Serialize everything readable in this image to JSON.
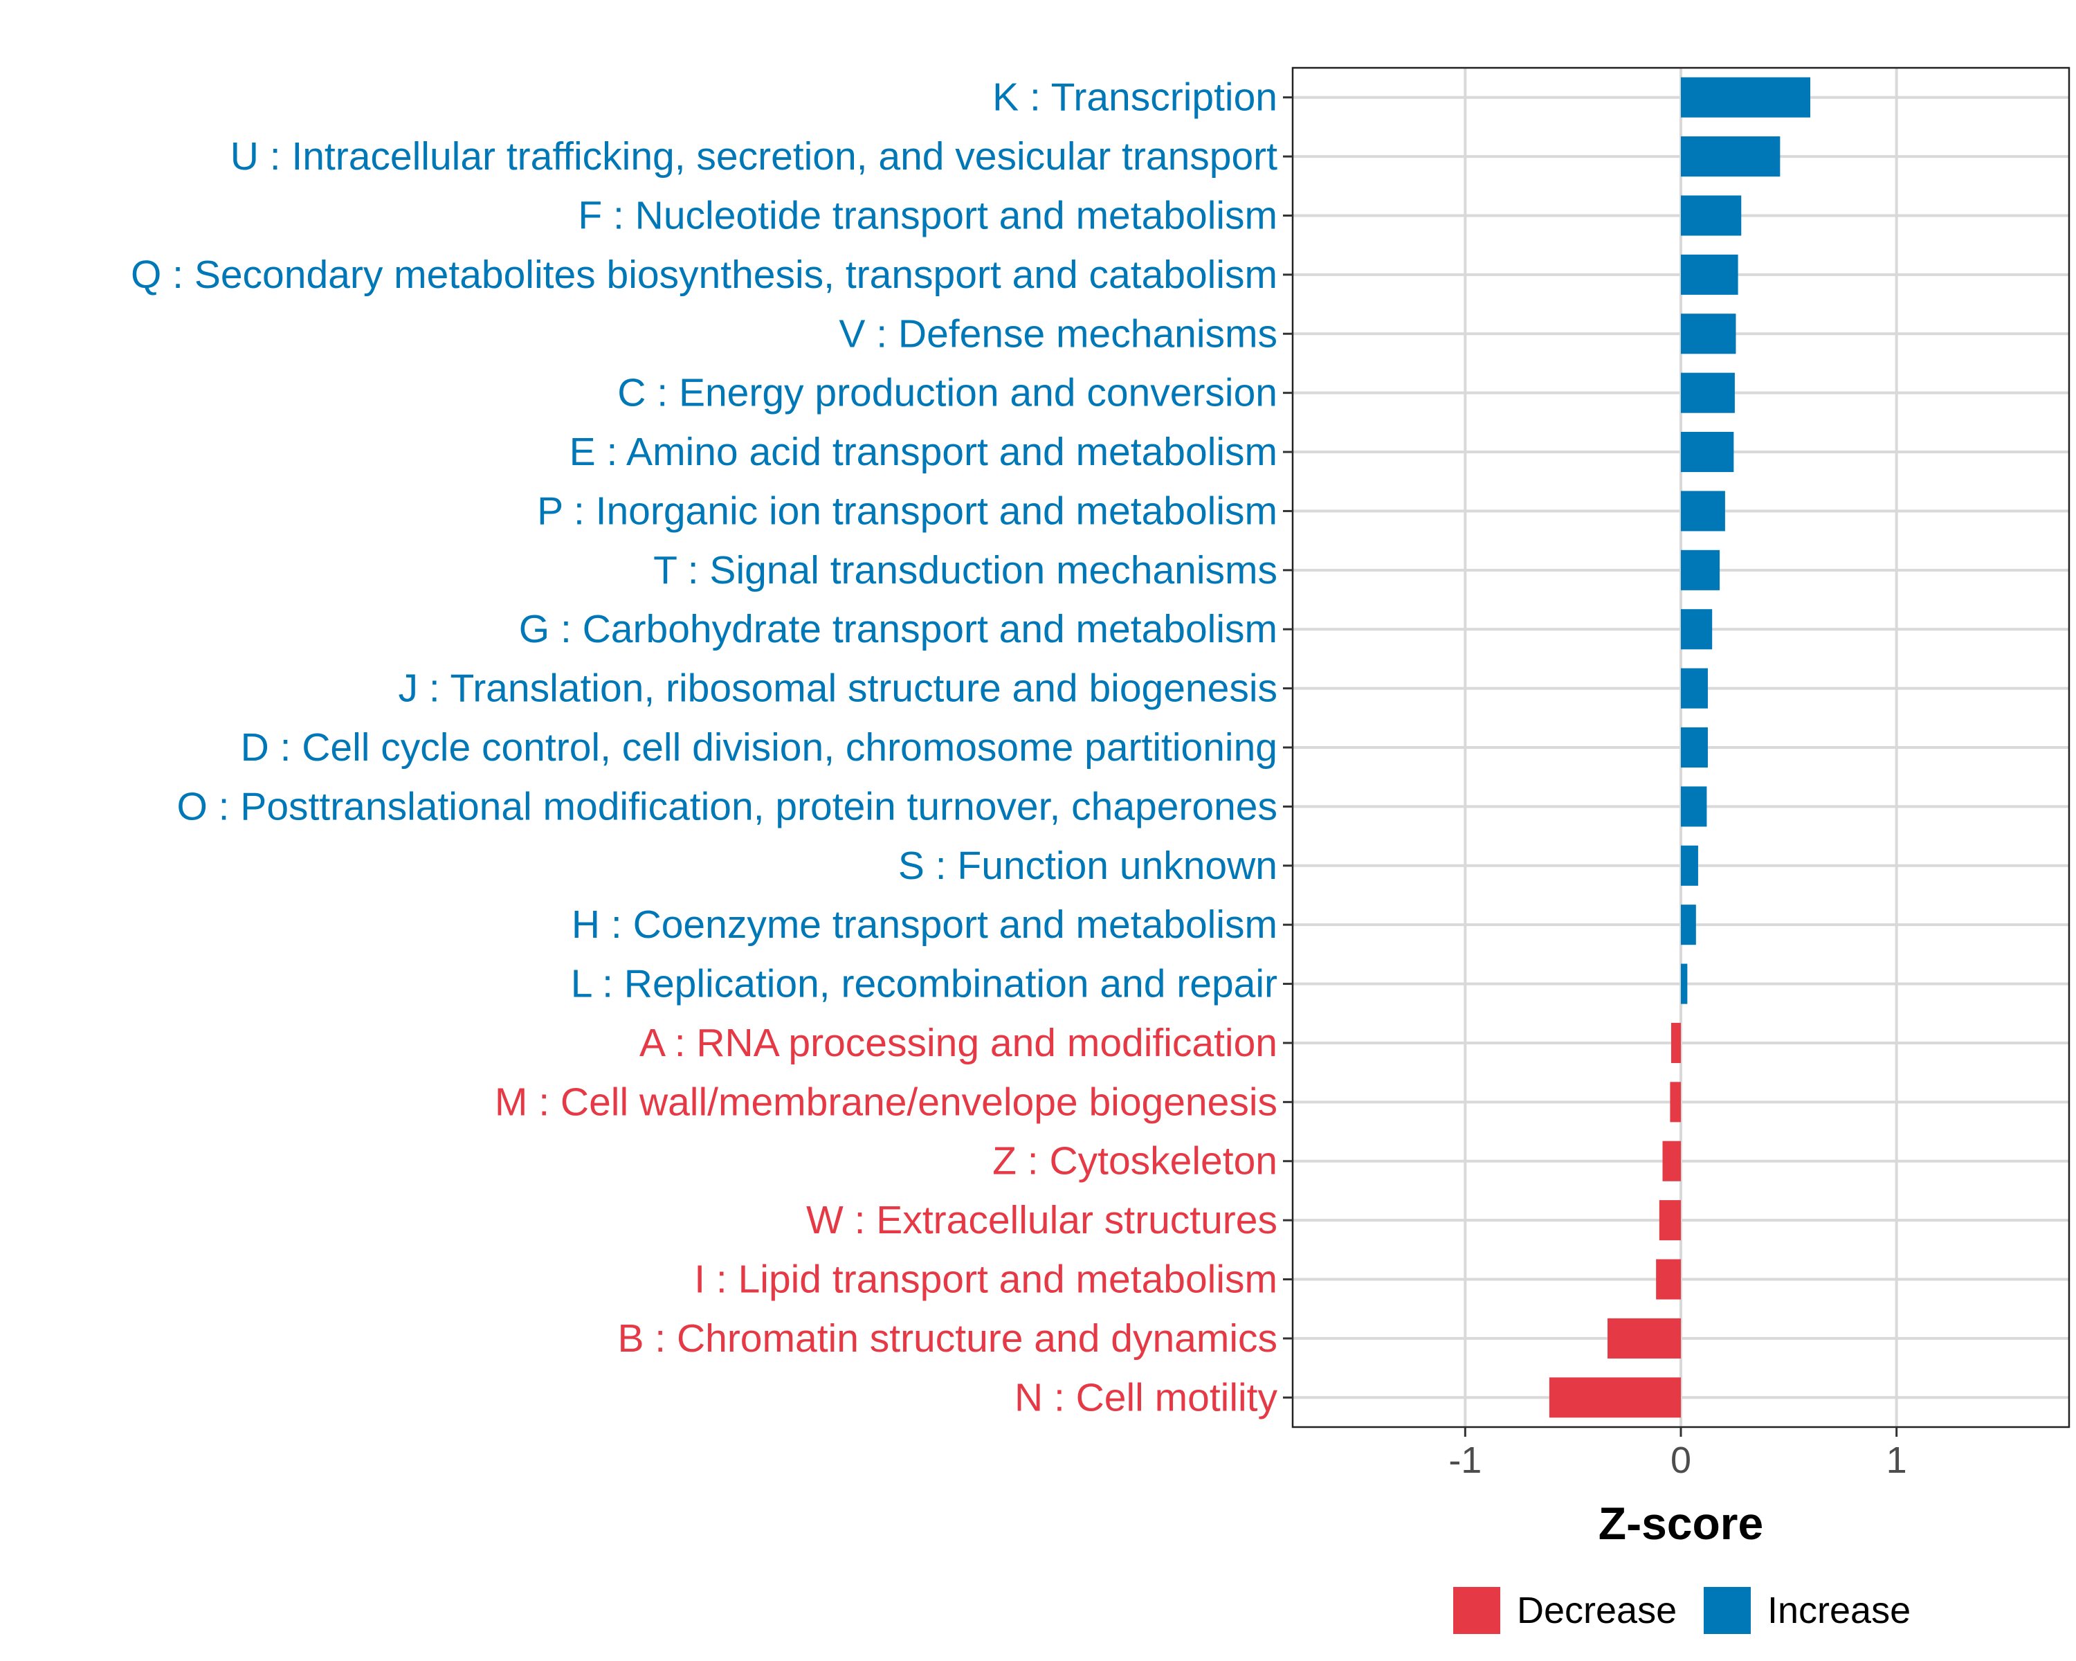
{
  "chart_data": {
    "type": "bar",
    "orientation": "horizontal",
    "xlabel": "Z-score",
    "ylabel": "",
    "xlim": [
      -1.8,
      1.8
    ],
    "x_ticks": [
      -1,
      0,
      1
    ],
    "x_tick_labels": [
      "-1",
      "0",
      "1"
    ],
    "grid": true,
    "legend_position": "bottom",
    "series": [
      {
        "name": "Decrease",
        "color": "#E63946"
      },
      {
        "name": "Increase",
        "color": "#0077B6"
      }
    ],
    "categories": [
      "K : Transcription",
      "U : Intracellular trafficking, secretion, and vesicular transport",
      "F : Nucleotide transport and metabolism",
      "Q : Secondary metabolites biosynthesis, transport and catabolism",
      "V : Defense mechanisms",
      "C : Energy production and conversion",
      "E : Amino acid transport and metabolism",
      "P : Inorganic ion transport and metabolism",
      "T : Signal transduction mechanisms",
      "G : Carbohydrate transport and metabolism",
      "J : Translation, ribosomal structure and biogenesis",
      "D : Cell cycle control, cell division, chromosome partitioning",
      "O : Posttranslational modification, protein turnover, chaperones",
      "S : Function unknown",
      "H : Coenzyme transport and metabolism",
      "L : Replication, recombination and repair",
      "A : RNA processing and modification",
      "M : Cell wall/membrane/envelope biogenesis",
      "Z : Cytoskeleton",
      "W : Extracellular structures",
      "I : Lipid transport and metabolism",
      "B : Chromatin structure and dynamics",
      "N : Cell motility"
    ],
    "values": [
      0.6,
      0.46,
      0.28,
      0.265,
      0.255,
      0.25,
      0.245,
      0.205,
      0.18,
      0.145,
      0.125,
      0.125,
      0.12,
      0.08,
      0.07,
      0.03,
      -0.045,
      -0.05,
      -0.085,
      -0.1,
      -0.115,
      -0.34,
      -0.61
    ]
  }
}
